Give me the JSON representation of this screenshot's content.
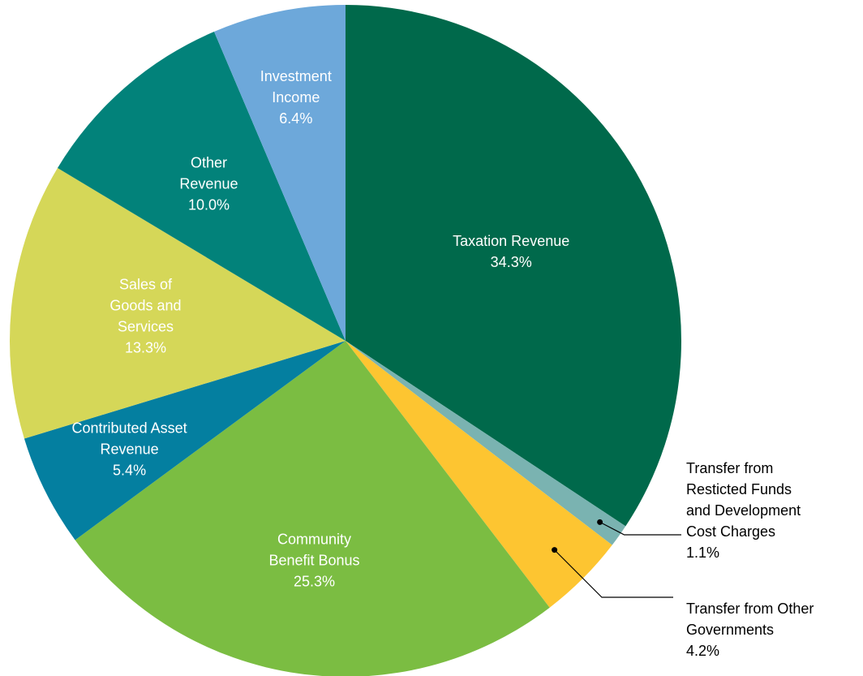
{
  "chart_data": {
    "type": "pie",
    "title": "",
    "slices": [
      {
        "label_lines": [
          "Taxation Revenue"
        ],
        "value": 34.3,
        "value_text": "34.3%",
        "color": "#00694b",
        "label_color": "#ffffff"
      },
      {
        "label_lines": [
          "Transfer from",
          "Resticted Funds",
          "and Development",
          "Cost Charges"
        ],
        "value": 1.1,
        "value_text": "1.1%",
        "color": "#7ab3b1",
        "label_color": "#000000"
      },
      {
        "label_lines": [
          "Transfer from Other",
          "Governments"
        ],
        "value": 4.2,
        "value_text": "4.2%",
        "color": "#fdc531",
        "label_color": "#000000"
      },
      {
        "label_lines": [
          "Community",
          "Benefit Bonus"
        ],
        "value": 25.3,
        "value_text": "25.3%",
        "color": "#7bbd42",
        "label_color": "#ffffff"
      },
      {
        "label_lines": [
          "Contributed Asset",
          "Revenue"
        ],
        "value": 5.4,
        "value_text": "5.4%",
        "color": "#047fa0",
        "label_color": "#ffffff"
      },
      {
        "label_lines": [
          "Sales of",
          "Goods and",
          "Services"
        ],
        "value": 13.3,
        "value_text": "13.3%",
        "color": "#d5d758",
        "label_color": "#ffffff"
      },
      {
        "label_lines": [
          "Other",
          "Revenue"
        ],
        "value": 10.0,
        "value_text": "10.0%",
        "color": "#02827a",
        "label_color": "#ffffff"
      },
      {
        "label_lines": [
          "Investment",
          "Income"
        ],
        "value": 6.4,
        "value_text": "6.4%",
        "color": "#6da8da",
        "label_color": "#ffffff"
      }
    ],
    "start_angle_deg": 0,
    "direction": "clockwise"
  }
}
